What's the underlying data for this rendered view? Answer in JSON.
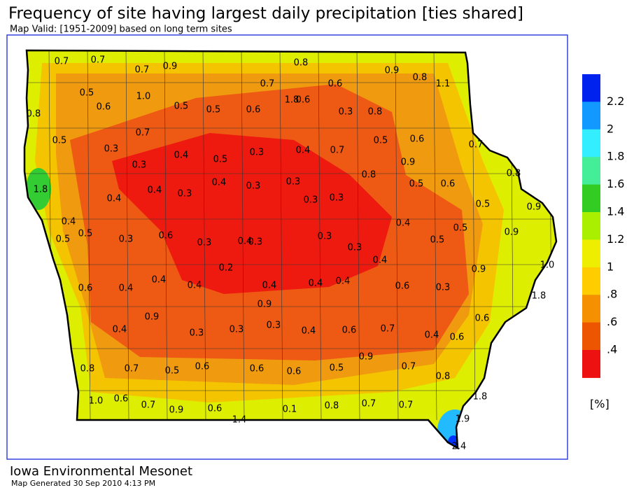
{
  "header": {
    "title": "Frequency of site having largest daily precipitation [ties shared]",
    "subtitle": "Map Valid: [1951-2009] based on long term sites"
  },
  "map": {
    "labels": [
      "0.7",
      "0.7",
      "0.7",
      "0.9",
      "0.8",
      "0.9",
      "0.8",
      "1.1",
      "0.5",
      "0.6",
      "1.0",
      "0.5",
      "0.5",
      "0.6",
      "0.7",
      "1.8",
      "0.6",
      "0.6",
      "0.3",
      "0.8",
      "0.8",
      "0.7",
      "0.5",
      "0.3",
      "0.3",
      "0.4",
      "0.5",
      "0.3",
      "0.4",
      "0.7",
      "0.5",
      "0.6",
      "0.7",
      "0.9",
      "0.8",
      "1.8",
      "0.4",
      "0.4",
      "0.3",
      "0.4",
      "0.3",
      "0.3",
      "0.3",
      "0.3",
      "0.5",
      "0.6",
      "0.8",
      "0.5",
      "0.9",
      "0.4",
      "0.5",
      "0.5",
      "0.3",
      "0.6",
      "0.3",
      "0.4",
      "0.3",
      "0.3",
      "0.3",
      "0.4",
      "0.5",
      "0.5",
      "0.9",
      "0.2",
      "0.4",
      "0.9",
      "1.0",
      "0.6",
      "0.4",
      "0.4",
      "0.4",
      "0.4",
      "0.4",
      "0.4",
      "0.6",
      "0.3",
      "1.8",
      "0.9",
      "0.9",
      "0.6",
      "0.4",
      "0.3",
      "0.3",
      "0.3",
      "0.4",
      "0.6",
      "0.7",
      "0.4",
      "0.6",
      "0.9",
      "0.8",
      "0.7",
      "0.5",
      "0.6",
      "0.6",
      "0.6",
      "0.5",
      "0.7",
      "0.8",
      "1.8",
      "1.0",
      "0.6",
      "0.7",
      "0.9",
      "0.6",
      "1.4",
      "0.1",
      "0.8",
      "0.7",
      "0.7",
      "1.9",
      "2.4"
    ]
  },
  "legend": {
    "labels": [
      "2.2",
      "2",
      "1.8",
      "1.6",
      "1.4",
      "1.2",
      "1",
      ".8",
      ".6",
      ".4"
    ],
    "unit": "[%]"
  },
  "footer": {
    "org": "Iowa Environmental Mesonet",
    "generated": "Map Generated 30 Sep 2010 4:13 PM"
  }
}
